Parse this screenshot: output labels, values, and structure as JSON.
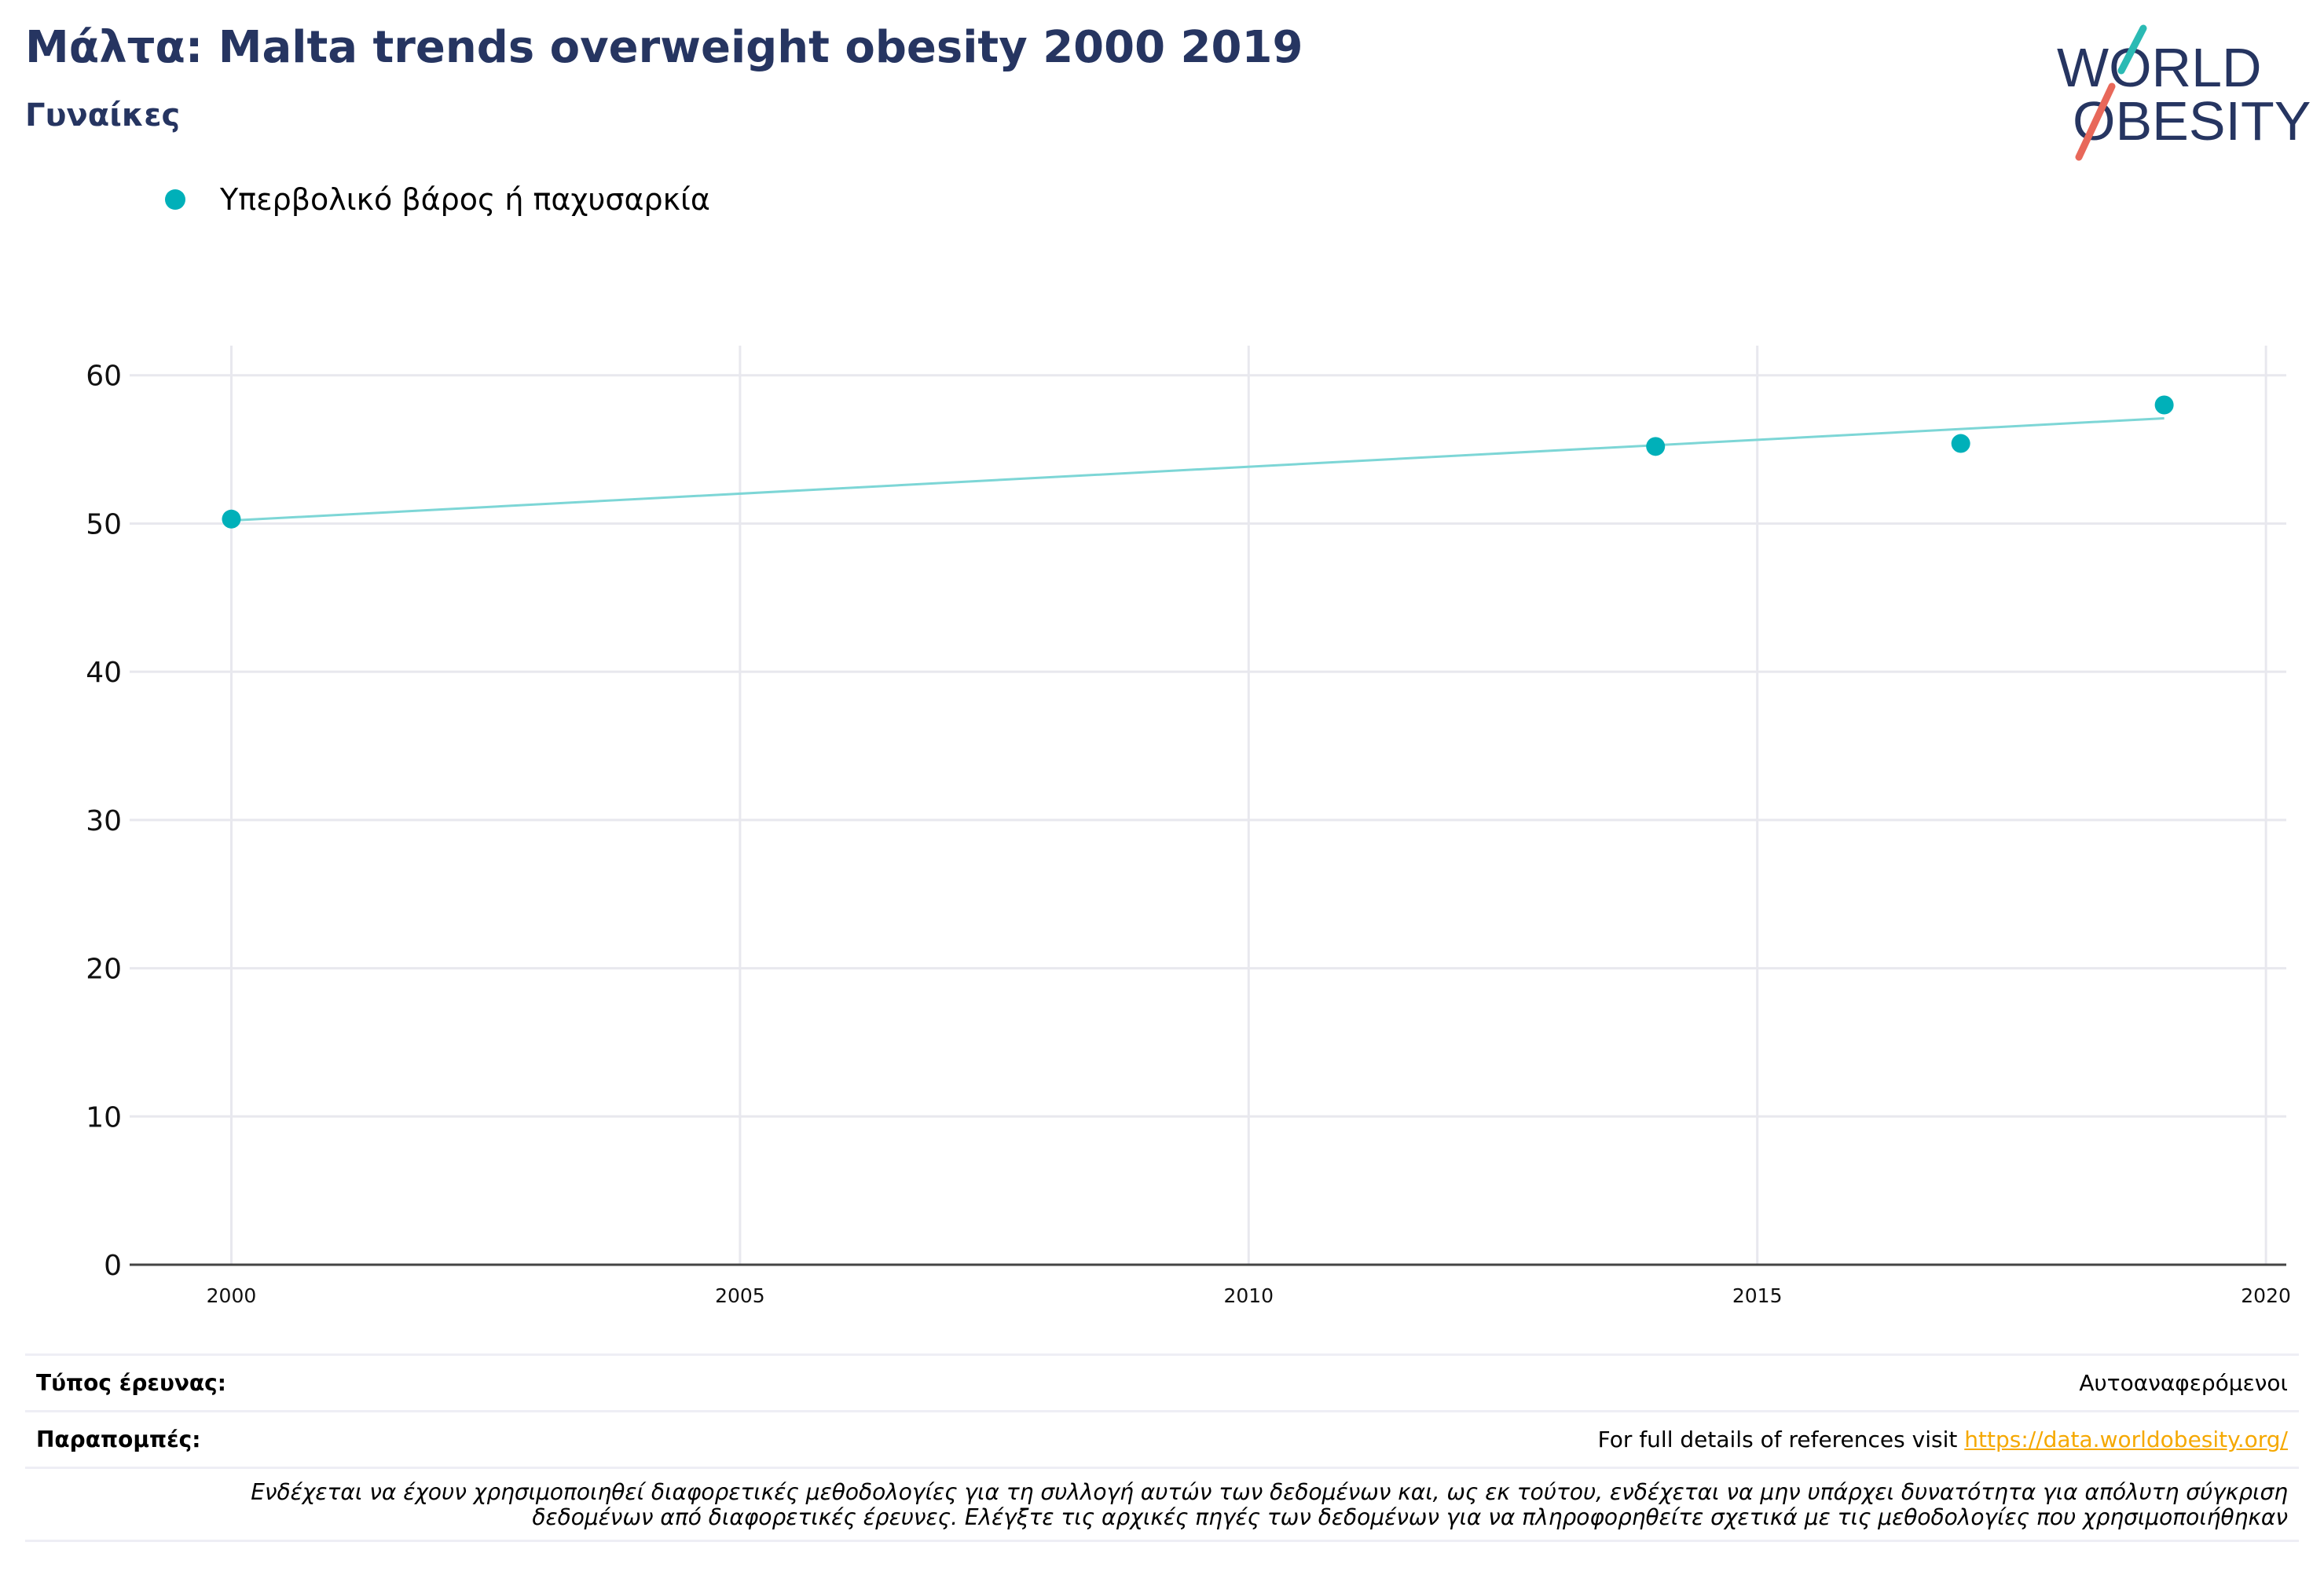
{
  "header": {
    "title": "Μάλτα: Malta trends overweight obesity 2000 2019",
    "subtitle": "Γυναίκες"
  },
  "logo": {
    "line1": "WORLD",
    "line2": "OBESITY",
    "text_color": "#263561",
    "slash_top_color": "#2bbab4",
    "slash_bottom_color": "#e8685a"
  },
  "legend": {
    "label": "Υπερβολικό βάρος ή παχυσαρκία",
    "color": "#00b0b9"
  },
  "chart_data": {
    "type": "scatter",
    "series": [
      {
        "name": "Υπερβολικό βάρος ή παχυσαρκία",
        "color": "#00b0b9",
        "points": [
          {
            "x": 2000,
            "y": 50.3
          },
          {
            "x": 2014,
            "y": 55.2
          },
          {
            "x": 2017,
            "y": 55.4
          },
          {
            "x": 2019,
            "y": 58.0
          }
        ],
        "trendline": {
          "x": [
            2000,
            2019
          ],
          "y": [
            50.2,
            57.1
          ],
          "color": "#7dd6d6"
        }
      }
    ],
    "xlim": [
      1999,
      2020.2
    ],
    "ylim": [
      0,
      62
    ],
    "xticks": [
      2000,
      2005,
      2010,
      2015,
      2020
    ],
    "yticks": [
      0,
      10,
      20,
      30,
      40,
      50,
      60
    ],
    "grid": true,
    "legend_position": "top-left",
    "title": "Μάλτα: Malta trends overweight obesity 2000 2019",
    "subtitle": "Γυναίκες",
    "xlabel": "",
    "ylabel": ""
  },
  "footer": {
    "survey_type_label": "Τύπος έρευνας:",
    "survey_type_value": "Αυτοαναφερόμενοι",
    "references_label": "Παραπομπές:",
    "references_text": "For full details of references visit ",
    "references_link": "https://data.worldobesity.org/",
    "disclaimer_line1": "Ενδέχεται να έχουν χρησιμοποιηθεί διαφορετικές μεθοδολογίες για τη συλλογή αυτών των δεδομένων και, ως εκ τούτου, ενδέχεται να μην υπάρχει δυνατότητα για απόλυτη σύγκριση",
    "disclaimer_line2": "δεδομένων από διαφορετικές έρευνες. Ελέγξτε τις αρχικές πηγές των δεδομένων για να πληροφορηθείτε σχετικά με τις μεθοδολογίες που χρησιμοποιήθηκαν"
  }
}
